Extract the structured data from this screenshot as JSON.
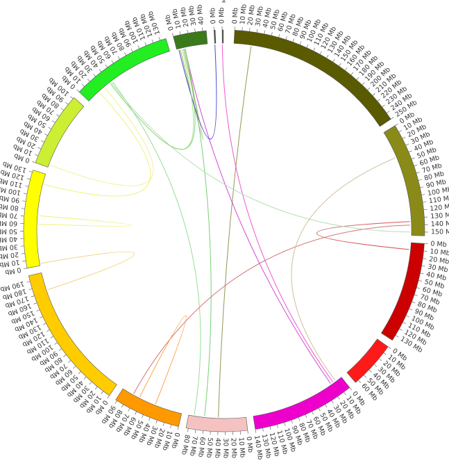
{
  "chart_data": {
    "type": "circos",
    "unit": "Mb",
    "segments": [
      {
        "name": "",
        "length": 250,
        "tick_step": 10,
        "color": "#5a5a00"
      },
      {
        "name": "",
        "length": 155,
        "tick_step": 10,
        "color": "#8a8a19"
      },
      {
        "name": "",
        "length": 138,
        "tick_step": 10,
        "color": "#cc0000"
      },
      {
        "name": "",
        "length": 65,
        "tick_step": 10,
        "color": "#ff1a1a"
      },
      {
        "name": "",
        "length": 140,
        "tick_step": 10,
        "color": "#ee00cc"
      },
      {
        "name": "",
        "length": 83,
        "tick_step": 10,
        "color": "#f5c2c2"
      },
      {
        "name": "",
        "length": 92,
        "tick_step": 10,
        "color": "#ff9900"
      },
      {
        "name": "",
        "length": 198,
        "tick_step": 10,
        "color": "#ffcc00"
      },
      {
        "name": "",
        "length": 133,
        "tick_step": 10,
        "color": "#ffff00"
      },
      {
        "name": "",
        "length": 102,
        "tick_step": 10,
        "color": "#ccee33"
      },
      {
        "name": "",
        "length": 138,
        "tick_step": 10,
        "color": "#22ee22"
      },
      {
        "name": "",
        "length": 45,
        "tick_step": 10,
        "color": "#3a7a1a"
      },
      {
        "name": "",
        "length": 0.6,
        "tick_step": 10,
        "color": "#4a4a4a"
      },
      {
        "name": "M733.1",
        "length": 0.4,
        "tick_step": 10,
        "color": "#4a4a4a"
      }
    ],
    "links": [
      {
        "from": {
          "seg": 0,
          "pos": 25
        },
        "to": {
          "seg": 5,
          "pos": 40
        },
        "color": "#8a8a40"
      },
      {
        "from": {
          "seg": 1,
          "pos": 140
        },
        "to": {
          "seg": 6,
          "pos": 75
        },
        "color": "#cc6666"
      },
      {
        "from": {
          "seg": 2,
          "pos": 10
        },
        "to": {
          "seg": 1,
          "pos": 135
        },
        "color": "#cc4444"
      },
      {
        "from": {
          "seg": 1,
          "pos": 40
        },
        "to": {
          "seg": 4,
          "pos": 10
        },
        "color": "#c8b890"
      },
      {
        "from": {
          "seg": 11,
          "pos": 12
        },
        "to": {
          "seg": 4,
          "pos": 18
        },
        "color": "#cc33cc"
      },
      {
        "from": {
          "seg": 11,
          "pos": 12
        },
        "to": {
          "seg": 5,
          "pos": 60
        },
        "color": "#66cc66"
      },
      {
        "from": {
          "seg": 11,
          "pos": 12
        },
        "to": {
          "seg": 10,
          "pos": 40
        },
        "color": "#66cc66"
      },
      {
        "from": {
          "seg": 11,
          "pos": 10
        },
        "to": {
          "seg": 11,
          "pos": 5
        },
        "color": "#88aa44"
      },
      {
        "from": {
          "seg": 12,
          "pos": 0.3
        },
        "to": {
          "seg": 11,
          "pos": 3
        },
        "color": "#3333cc"
      },
      {
        "from": {
          "seg": 13,
          "pos": 0.2
        },
        "to": {
          "seg": 4,
          "pos": 14
        },
        "color": "#ee44cc"
      },
      {
        "from": {
          "seg": 10,
          "pos": 44
        },
        "to": {
          "seg": 5,
          "pos": 75
        },
        "color": "#88dd88"
      },
      {
        "from": {
          "seg": 10,
          "pos": 42
        },
        "to": {
          "seg": 1,
          "pos": 150
        },
        "color": "#aaddaa"
      },
      {
        "from": {
          "seg": 10,
          "pos": 40
        },
        "to": {
          "seg": 11,
          "pos": 8
        },
        "color": "#99dd77"
      },
      {
        "from": {
          "seg": 9,
          "pos": 4
        },
        "to": {
          "seg": 10,
          "pos": 30
        },
        "color": "#eeee88"
      },
      {
        "from": {
          "seg": 8,
          "pos": 118
        },
        "to": {
          "seg": 10,
          "pos": 20
        },
        "color": "#eeee66"
      },
      {
        "from": {
          "seg": 8,
          "pos": 72
        },
        "to": {
          "seg": 8,
          "pos": 60
        },
        "color": "#eeee66"
      },
      {
        "from": {
          "seg": 8,
          "pos": 3
        },
        "to": {
          "seg": 7,
          "pos": 172
        },
        "color": "#f0cc66"
      },
      {
        "from": {
          "seg": 6,
          "pos": 40
        },
        "to": {
          "seg": 6,
          "pos": 65
        },
        "color": "#ff9933"
      }
    ]
  }
}
